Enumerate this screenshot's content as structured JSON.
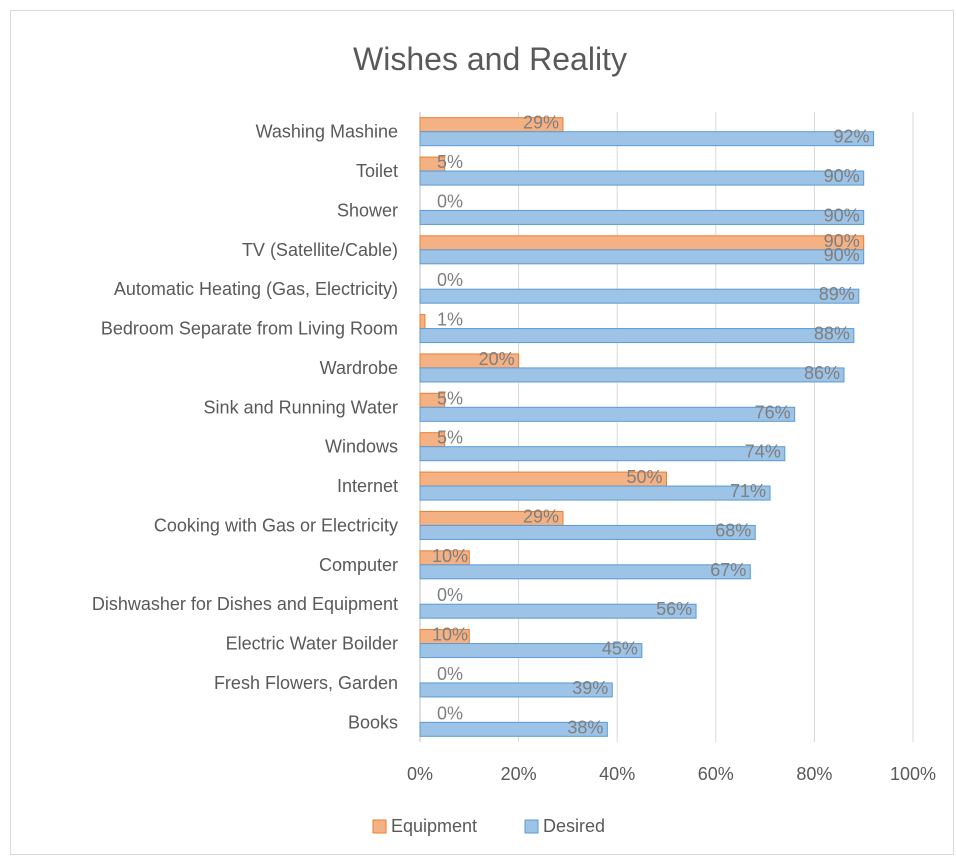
{
  "chart_data": {
    "type": "bar",
    "orientation": "horizontal",
    "title": "Wishes and Reality",
    "categories": [
      "Washing Mashine",
      "Toilet",
      "Shower",
      "TV (Satellite/Cable)",
      "Automatic Heating (Gas, Electricity)",
      "Bedroom Separate from Living Room",
      "Wardrobe",
      "Sink and Running Water",
      "Windows",
      "Internet",
      "Cooking with Gas or Electricity",
      "Computer",
      "Dishwasher for Dishes and Equipment",
      "Electric Water Boilder",
      "Fresh Flowers, Garden",
      "Books"
    ],
    "series": [
      {
        "name": "Equipment",
        "color": "#f4b183",
        "stroke": "#ed7d31",
        "values": [
          29,
          5,
          0,
          90,
          0,
          1,
          20,
          5,
          5,
          50,
          29,
          10,
          0,
          10,
          0,
          0
        ]
      },
      {
        "name": "Desired",
        "color": "#9dc3e6",
        "stroke": "#5b9bd5",
        "values": [
          92,
          90,
          90,
          90,
          89,
          88,
          86,
          76,
          74,
          71,
          68,
          67,
          56,
          45,
          39,
          38
        ]
      }
    ],
    "xlim": [
      0,
      100
    ],
    "x_ticks": [
      "0%",
      "20%",
      "40%",
      "60%",
      "80%",
      "100%"
    ],
    "value_suffix": "%",
    "grid": true,
    "legend_position": "bottom"
  }
}
